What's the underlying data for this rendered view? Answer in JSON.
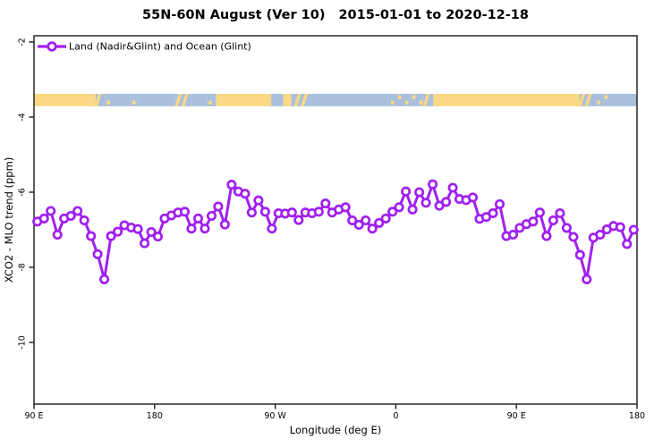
{
  "title": {
    "main": "55N-60N August (Ver 10)",
    "date_range": "2015-01-01 to 2020-12-18"
  },
  "legend": {
    "label": "Land (Nadir&Glint) and Ocean (Glint)",
    "marker": "open-circle-on-line"
  },
  "axes": {
    "x": {
      "label": "Longitude (deg E)",
      "ticks": [
        {
          "lon": 90,
          "label": "90 E"
        },
        {
          "lon": 180,
          "label": "180"
        },
        {
          "lon": 270,
          "label": "90 W"
        },
        {
          "lon": 360,
          "label": "0"
        },
        {
          "lon": 450,
          "label": "90 E"
        },
        {
          "lon": 540,
          "label": "180"
        }
      ]
    },
    "y": {
      "label": "XCO2 - MLO trend (ppm)",
      "ticks": [
        {
          "value": -2,
          "label": "-2"
        },
        {
          "value": -4,
          "label": "-4"
        },
        {
          "value": -6,
          "label": "-6"
        },
        {
          "value": -8,
          "label": "-8"
        },
        {
          "value": -10,
          "label": "-10"
        }
      ]
    }
  },
  "colors": {
    "series": "#A020F0",
    "land": "#FAD884",
    "ocean": "#A9BFDC",
    "axis": "#1a1a1a",
    "background": "#ffffff"
  },
  "map_strip": {
    "description": "land-ocean map band for 55N-60N latitude",
    "top_value": -3.38,
    "bottom_value": -3.71,
    "segments": [
      {
        "from": 90,
        "to": 136,
        "type": "land"
      },
      {
        "from": 136,
        "to": 143,
        "type": "mix"
      },
      {
        "from": 143,
        "to": 149,
        "type": "specks"
      },
      {
        "from": 149,
        "to": 162,
        "type": "ocean"
      },
      {
        "from": 162,
        "to": 167,
        "type": "specks"
      },
      {
        "from": 167,
        "to": 196,
        "type": "ocean"
      },
      {
        "from": 196,
        "to": 207,
        "type": "mix"
      },
      {
        "from": 207,
        "to": 219,
        "type": "ocean"
      },
      {
        "from": 219,
        "to": 226,
        "type": "specks"
      },
      {
        "from": 226,
        "to": 267,
        "type": "land"
      },
      {
        "from": 267,
        "to": 276,
        "type": "ocean"
      },
      {
        "from": 276,
        "to": 282,
        "type": "land"
      },
      {
        "from": 282,
        "to": 285,
        "type": "ocean"
      },
      {
        "from": 285,
        "to": 297,
        "type": "mix"
      },
      {
        "from": 297,
        "to": 355,
        "type": "ocean"
      },
      {
        "from": 355,
        "to": 381,
        "type": "specks"
      },
      {
        "from": 381,
        "to": 388,
        "type": "mix"
      },
      {
        "from": 388,
        "to": 497,
        "type": "land"
      },
      {
        "from": 497,
        "to": 509,
        "type": "mix"
      },
      {
        "from": 509,
        "to": 521,
        "type": "specks"
      },
      {
        "from": 521,
        "to": 540,
        "type": "ocean"
      }
    ]
  },
  "chart_data": {
    "type": "line",
    "title": "55N-60N August (Ver 10)  2015-01-01 to 2020-12-18",
    "xlabel": "Longitude (deg E)",
    "ylabel": "XCO2 - MLO trend (ppm)",
    "xlim": [
      90,
      540
    ],
    "ylim": [
      -11.6,
      -1.8
    ],
    "x_wraps_globe": true,
    "x_tick_positions": [
      90,
      180,
      270,
      360,
      450,
      540
    ],
    "x_tick_labels": [
      "90 E",
      "180",
      "90 W",
      "0",
      "90 E",
      "180"
    ],
    "y_ticks": [
      -2,
      -4,
      -6,
      -8,
      -10
    ],
    "grid": false,
    "legend_position": "top-left",
    "series": [
      {
        "name": "Land (Nadir&Glint) and Ocean (Glint)",
        "color": "#A020F0",
        "marker": "open-circle",
        "x": [
          92.5,
          97.5,
          102.5,
          107.5,
          112.5,
          117.5,
          122.5,
          127.5,
          132.5,
          137.5,
          142.5,
          147.5,
          152.5,
          157.5,
          162.5,
          167.5,
          172.5,
          177.5,
          182.5,
          187.5,
          192.5,
          197.5,
          202.5,
          207.5,
          212.5,
          217.5,
          222.5,
          227.5,
          232.5,
          237.5,
          242.5,
          247.5,
          252.5,
          257.5,
          262.5,
          267.5,
          272.5,
          277.5,
          282.5,
          287.5,
          292.5,
          297.5,
          302.5,
          307.5,
          312.5,
          317.5,
          322.5,
          327.5,
          332.5,
          337.5,
          342.5,
          347.5,
          352.5,
          357.5,
          362.5,
          367.5,
          372.5,
          377.5,
          382.5,
          387.5,
          392.5,
          397.5,
          402.5,
          407.5,
          412.5,
          417.5,
          422.5,
          427.5,
          432.5,
          437.5,
          442.5,
          447.5,
          452.5,
          457.5,
          462.5,
          467.5,
          472.5,
          477.5,
          482.5,
          487.5,
          492.5,
          497.5,
          502.5,
          507.5,
          512.5,
          517.5,
          522.5,
          527.5,
          532.5,
          537.5
        ],
        "y": [
          -6.78,
          -6.7,
          -6.5,
          -7.13,
          -6.7,
          -6.63,
          -6.5,
          -6.75,
          -7.17,
          -7.65,
          -8.32,
          -7.17,
          -7.05,
          -6.88,
          -6.94,
          -6.98,
          -7.36,
          -7.06,
          -7.18,
          -6.7,
          -6.62,
          -6.54,
          -6.52,
          -6.97,
          -6.7,
          -6.97,
          -6.63,
          -6.38,
          -6.86,
          -5.8,
          -5.98,
          -6.04,
          -6.54,
          -6.22,
          -6.52,
          -6.97,
          -6.56,
          -6.57,
          -6.54,
          -6.74,
          -6.54,
          -6.56,
          -6.52,
          -6.3,
          -6.54,
          -6.46,
          -6.4,
          -6.75,
          -6.87,
          -6.75,
          -6.97,
          -6.82,
          -6.7,
          -6.52,
          -6.4,
          -5.98,
          -6.46,
          -6.0,
          -6.28,
          -5.79,
          -6.36,
          -6.26,
          -5.88,
          -6.18,
          -6.21,
          -6.14,
          -6.71,
          -6.66,
          -6.56,
          -6.32,
          -7.17,
          -7.13,
          -6.95,
          -6.85,
          -6.78,
          -6.54,
          -7.17,
          -6.75,
          -6.56,
          -6.95,
          -7.19,
          -7.67,
          -8.32,
          -7.21,
          -7.13,
          -6.99,
          -6.9,
          -6.93,
          -7.38,
          -7.0
        ]
      }
    ]
  }
}
